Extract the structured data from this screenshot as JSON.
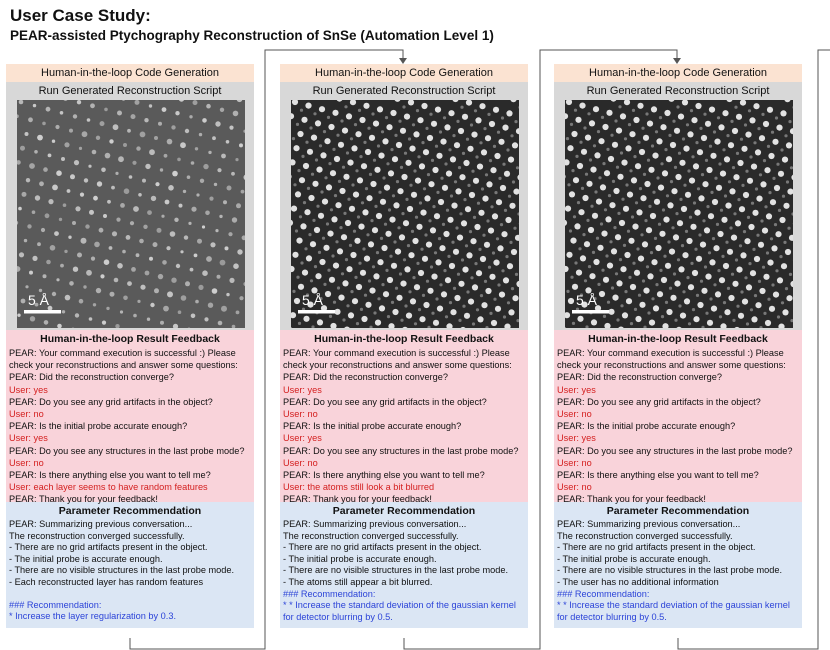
{
  "title": "User Case Study:",
  "subtitle": "PEAR-assisted Ptychography Reconstruction of SnSe (Automation Level 1)",
  "colors": {
    "header_bg": "#fbe3d2",
    "run_bg": "#d8d8d8",
    "feedback_bg": "#f9d3da",
    "recommend_bg": "#dbe6f4",
    "user_text": "#d42020",
    "recommend_text": "#2c44d8"
  },
  "columns": [
    {
      "header": "Human-in-the-loop Code Generation",
      "run_label": "Run Generated Reconstruction Script",
      "scale_label": "5 Å",
      "feedback_title": "Human-in-the-loop Result Feedback",
      "feedback": [
        {
          "speaker": "pear",
          "text": "PEAR: Your command execution is successful :) Please"
        },
        {
          "speaker": "pear",
          "text": "check your reconstructions and answer some questions:"
        },
        {
          "speaker": "pear",
          "text": "PEAR: Did the reconstruction converge?"
        },
        {
          "speaker": "user",
          "text": "User: yes"
        },
        {
          "speaker": "pear",
          "text": "PEAR: Do you see any grid artifacts in the object?"
        },
        {
          "speaker": "user",
          "text": "User: no"
        },
        {
          "speaker": "pear",
          "text": "PEAR: Is the initial probe accurate enough?"
        },
        {
          "speaker": "user",
          "text": "User: yes"
        },
        {
          "speaker": "pear",
          "text": "PEAR: Do you see any structures in the last probe mode?"
        },
        {
          "speaker": "user",
          "text": "User:  no"
        },
        {
          "speaker": "pear",
          "text": "PEAR: Is there anything else you want to tell me?"
        },
        {
          "speaker": "user",
          "text": "User: each layer seems to have random features"
        },
        {
          "speaker": "pear",
          "text": "PEAR: Thank you for your feedback!"
        }
      ],
      "rec_title": "Parameter Recommendation",
      "recommendation": [
        {
          "kind": "text",
          "text": "PEAR: Summarizing previous conversation..."
        },
        {
          "kind": "text",
          "text": "The reconstruction converged successfully."
        },
        {
          "kind": "text",
          "text": "- There are no grid artifacts present in the object."
        },
        {
          "kind": "text",
          "text": "- The initial probe is accurate enough."
        },
        {
          "kind": "text",
          "text": "- There are no visible structures in the last probe mode."
        },
        {
          "kind": "text",
          "text": "- Each reconstructed layer has random features"
        },
        {
          "kind": "gap",
          "text": ""
        },
        {
          "kind": "blue",
          "text": "### Recommendation:"
        },
        {
          "kind": "blue",
          "text": "* Increase the layer regularization by 0.3."
        }
      ]
    },
    {
      "header": "Human-in-the-loop Code Generation",
      "run_label": "Run Generated Reconstruction Script",
      "scale_label": "5 Å",
      "feedback_title": "Human-in-the-loop Result Feedback",
      "feedback": [
        {
          "speaker": "pear",
          "text": "PEAR: Your command execution is successful :) Please"
        },
        {
          "speaker": "pear",
          "text": "check your reconstructions and answer some questions:"
        },
        {
          "speaker": "pear",
          "text": "PEAR: Did the reconstruction converge?"
        },
        {
          "speaker": "user",
          "text": "User: yes"
        },
        {
          "speaker": "pear",
          "text": "PEAR: Do you see any grid artifacts in the object?"
        },
        {
          "speaker": "user",
          "text": "User: no"
        },
        {
          "speaker": "pear",
          "text": "PEAR: Is the initial probe accurate enough?"
        },
        {
          "speaker": "user",
          "text": "User: yes"
        },
        {
          "speaker": "pear",
          "text": "PEAR: Do you see any structures in the last probe mode?"
        },
        {
          "speaker": "user",
          "text": "User: no"
        },
        {
          "speaker": "pear",
          "text": "PEAR: Is there anything else you want to tell me?"
        },
        {
          "speaker": "user",
          "text": "User: the atoms still look a bit blurred"
        },
        {
          "speaker": "pear",
          "text": "PEAR: Thank you for your feedback!"
        }
      ],
      "rec_title": "Parameter Recommendation",
      "recommendation": [
        {
          "kind": "text",
          "text": "PEAR: Summarizing previous conversation..."
        },
        {
          "kind": "text",
          "text": "The reconstruction converged successfully."
        },
        {
          "kind": "text",
          "text": "- There are no grid artifacts present in the object."
        },
        {
          "kind": "text",
          "text": "- The initial probe is accurate enough."
        },
        {
          "kind": "text",
          "text": "- There are no visible structures in the last probe mode."
        },
        {
          "kind": "text",
          "text": "- The atoms still appear a bit blurred."
        },
        {
          "kind": "blue",
          "text": "### Recommendation:"
        },
        {
          "kind": "blue",
          "text": "* * Increase the standard deviation of the gaussian kernel"
        },
        {
          "kind": "blue",
          "text": "for detector blurring by 0.5."
        }
      ]
    },
    {
      "header": "Human-in-the-loop Code Generation",
      "run_label": "Run Generated Reconstruction Script",
      "scale_label": "5 Å",
      "feedback_title": "Human-in-the-loop Result Feedback",
      "feedback": [
        {
          "speaker": "pear",
          "text": "PEAR: Your command execution is successful :) Please"
        },
        {
          "speaker": "pear",
          "text": "check your reconstructions and answer some questions:"
        },
        {
          "speaker": "pear",
          "text": "PEAR: Did the reconstruction converge?"
        },
        {
          "speaker": "user",
          "text": "User: yes"
        },
        {
          "speaker": "pear",
          "text": "PEAR: Do you see any grid artifacts in the object?"
        },
        {
          "speaker": "user",
          "text": "User: no"
        },
        {
          "speaker": "pear",
          "text": "PEAR: Is the initial probe accurate enough?"
        },
        {
          "speaker": "user",
          "text": "User: yes"
        },
        {
          "speaker": "pear",
          "text": "PEAR: Do you see any structures in the last probe mode?"
        },
        {
          "speaker": "user",
          "text": "User: no"
        },
        {
          "speaker": "pear",
          "text": "PEAR: Is there anything else you want to tell me?"
        },
        {
          "speaker": "user",
          "text": "User: no"
        },
        {
          "speaker": "pear",
          "text": "PEAR: Thank you for your feedback!"
        }
      ],
      "rec_title": "Parameter Recommendation",
      "recommendation": [
        {
          "kind": "text",
          "text": "PEAR: Summarizing previous conversation..."
        },
        {
          "kind": "text",
          "text": "The reconstruction converged successfully."
        },
        {
          "kind": "text",
          "text": "- There are no grid artifacts present in the object."
        },
        {
          "kind": "text",
          "text": "- The initial probe is accurate enough."
        },
        {
          "kind": "text",
          "text": "- There are no visible structures in the last probe mode."
        },
        {
          "kind": "text",
          "text": "- The user has no additional information"
        },
        {
          "kind": "blue",
          "text": "### Recommendation:"
        },
        {
          "kind": "blue",
          "text": "* * Increase the standard deviation of the gaussian kernel"
        },
        {
          "kind": "blue",
          "text": "for detector blurring by 0.5."
        }
      ]
    }
  ]
}
